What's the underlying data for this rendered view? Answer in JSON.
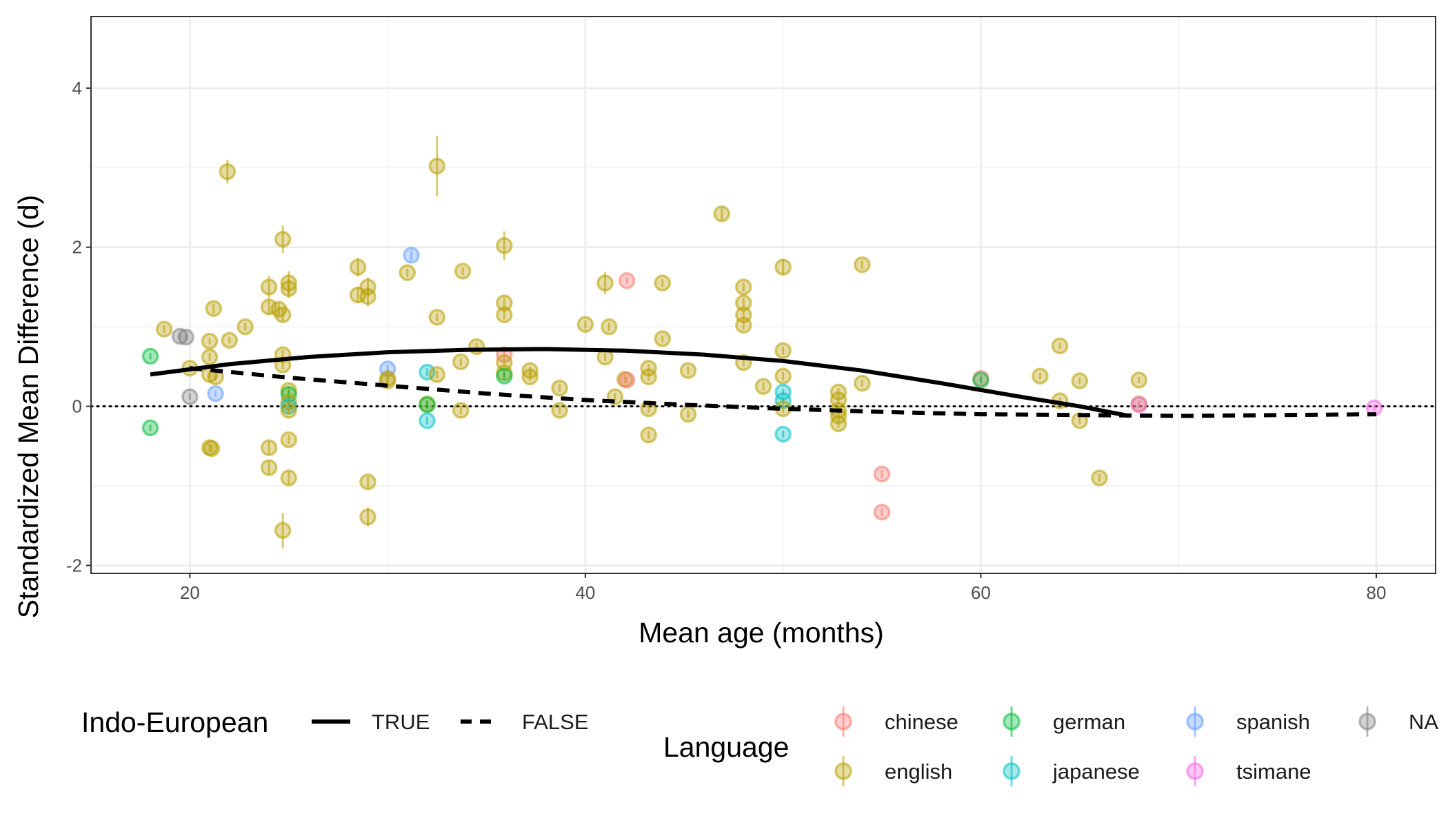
{
  "chart_data": {
    "type": "scatter",
    "xlabel": "Mean age (months)",
    "ylabel": "Standardized Mean Difference (d)",
    "xlim": [
      15,
      83
    ],
    "ylim": [
      -2.1,
      4.9
    ],
    "x_ticks": [
      20,
      40,
      60,
      80
    ],
    "y_ticks": [
      -2,
      0,
      2,
      4
    ],
    "reference_line_y": 0,
    "grid": true,
    "legend_position": "bottom",
    "language_legend": {
      "title": "Language",
      "entries": [
        {
          "name": "chinese",
          "color": "#F8766D"
        },
        {
          "name": "english",
          "color": "#B79F00"
        },
        {
          "name": "german",
          "color": "#00BA38"
        },
        {
          "name": "japanese",
          "color": "#00BFC4"
        },
        {
          "name": "spanish",
          "color": "#619CFF"
        },
        {
          "name": "tsimane",
          "color": "#F564E3"
        },
        {
          "name": "NA",
          "color": "#7F7F7F"
        }
      ]
    },
    "indo_european_legend": {
      "title": "Indo-European",
      "entries": [
        {
          "name": "TRUE",
          "linestyle": "solid"
        },
        {
          "name": "FALSE",
          "linestyle": "dashed"
        }
      ]
    },
    "trend_lines": [
      {
        "name": "TRUE",
        "linestyle": "solid",
        "x": [
          18,
          22,
          26,
          30,
          34,
          38,
          42,
          46,
          50,
          54,
          58,
          62,
          65,
          67.5
        ],
        "y": [
          0.4,
          0.53,
          0.62,
          0.68,
          0.71,
          0.72,
          0.7,
          0.65,
          0.57,
          0.45,
          0.29,
          0.12,
          0.0,
          -0.12
        ]
      },
      {
        "name": "FALSE",
        "linestyle": "dashed",
        "x": [
          20,
          25,
          30,
          35,
          40,
          45,
          50,
          55,
          60,
          65,
          70,
          75,
          80
        ],
        "y": [
          0.48,
          0.36,
          0.26,
          0.16,
          0.08,
          0.02,
          -0.03,
          -0.07,
          -0.1,
          -0.11,
          -0.12,
          -0.11,
          -0.1
        ]
      }
    ],
    "points": [
      {
        "x": 21.9,
        "y": 2.95,
        "err": 0.15,
        "language": "english"
      },
      {
        "x": 32.5,
        "y": 3.02,
        "err": 0.38,
        "language": "english"
      },
      {
        "x": 24.7,
        "y": 2.1,
        "err": 0.17,
        "language": "english"
      },
      {
        "x": 35.9,
        "y": 2.02,
        "err": 0.18,
        "language": "english"
      },
      {
        "x": 46.9,
        "y": 2.42,
        "err": 0.08,
        "language": "english"
      },
      {
        "x": 31.2,
        "y": 1.9,
        "err": 0.06,
        "language": "spanish"
      },
      {
        "x": 28.5,
        "y": 1.75,
        "err": 0.12,
        "language": "english"
      },
      {
        "x": 33.8,
        "y": 1.7,
        "err": 0.05,
        "language": "english"
      },
      {
        "x": 31.0,
        "y": 1.68,
        "err": 0.05,
        "language": "english"
      },
      {
        "x": 24.0,
        "y": 1.5,
        "err": 0.14,
        "language": "english"
      },
      {
        "x": 25.0,
        "y": 1.55,
        "err": 0.15,
        "language": "english"
      },
      {
        "x": 25.0,
        "y": 1.48,
        "err": 0.12,
        "language": "english"
      },
      {
        "x": 29.0,
        "y": 1.5,
        "err": 0.12,
        "language": "english"
      },
      {
        "x": 28.5,
        "y": 1.4,
        "err": 0.1,
        "language": "english"
      },
      {
        "x": 29.0,
        "y": 1.38,
        "err": 0.12,
        "language": "english"
      },
      {
        "x": 24.0,
        "y": 1.25,
        "err": 0.1,
        "language": "english"
      },
      {
        "x": 24.5,
        "y": 1.22,
        "err": 0.08,
        "language": "english"
      },
      {
        "x": 24.7,
        "y": 1.15,
        "err": 0.08,
        "language": "english"
      },
      {
        "x": 21.2,
        "y": 1.23,
        "err": 0.06,
        "language": "english"
      },
      {
        "x": 32.5,
        "y": 1.12,
        "err": 0.05,
        "language": "english"
      },
      {
        "x": 35.9,
        "y": 1.3,
        "err": 0.07,
        "language": "english"
      },
      {
        "x": 35.9,
        "y": 1.15,
        "err": 0.06,
        "language": "english"
      },
      {
        "x": 22.8,
        "y": 1.0,
        "err": 0.05,
        "language": "english"
      },
      {
        "x": 18.7,
        "y": 0.97,
        "err": 0.05,
        "language": "english"
      },
      {
        "x": 41.0,
        "y": 1.55,
        "err": 0.14,
        "language": "english"
      },
      {
        "x": 43.9,
        "y": 1.55,
        "err": 0.05,
        "language": "english"
      },
      {
        "x": 42.1,
        "y": 1.58,
        "err": 0.04,
        "language": "chinese"
      },
      {
        "x": 48.0,
        "y": 1.5,
        "err": 0.06,
        "language": "english"
      },
      {
        "x": 48.0,
        "y": 1.3,
        "err": 0.06,
        "language": "english"
      },
      {
        "x": 48.0,
        "y": 1.15,
        "err": 0.06,
        "language": "english"
      },
      {
        "x": 48.0,
        "y": 1.02,
        "err": 0.06,
        "language": "english"
      },
      {
        "x": 50.0,
        "y": 1.75,
        "err": 0.1,
        "language": "english"
      },
      {
        "x": 54.0,
        "y": 1.78,
        "err": 0.05,
        "language": "english"
      },
      {
        "x": 40.0,
        "y": 1.03,
        "err": 0.05,
        "language": "english"
      },
      {
        "x": 41.2,
        "y": 1.0,
        "err": 0.05,
        "language": "english"
      },
      {
        "x": 19.5,
        "y": 0.88,
        "err": 0.04,
        "language": "NA"
      },
      {
        "x": 19.8,
        "y": 0.87,
        "err": 0.04,
        "language": "NA"
      },
      {
        "x": 22.0,
        "y": 0.83,
        "err": 0.04,
        "language": "english"
      },
      {
        "x": 21.0,
        "y": 0.82,
        "err": 0.04,
        "language": "english"
      },
      {
        "x": 18.0,
        "y": 0.63,
        "err": 0.04,
        "language": "german"
      },
      {
        "x": 21.0,
        "y": 0.62,
        "err": 0.05,
        "language": "english"
      },
      {
        "x": 24.7,
        "y": 0.65,
        "err": 0.06,
        "language": "english"
      },
      {
        "x": 24.7,
        "y": 0.52,
        "err": 0.05,
        "language": "english"
      },
      {
        "x": 34.5,
        "y": 0.75,
        "err": 0.05,
        "language": "english"
      },
      {
        "x": 33.7,
        "y": 0.56,
        "err": 0.05,
        "language": "english"
      },
      {
        "x": 35.9,
        "y": 0.65,
        "err": 0.05,
        "language": "chinese"
      },
      {
        "x": 35.9,
        "y": 0.55,
        "err": 0.05,
        "language": "english"
      },
      {
        "x": 35.9,
        "y": 0.42,
        "err": 0.05,
        "language": "english"
      },
      {
        "x": 35.9,
        "y": 0.38,
        "err": 0.05,
        "language": "german"
      },
      {
        "x": 37.2,
        "y": 0.45,
        "err": 0.05,
        "language": "english"
      },
      {
        "x": 37.2,
        "y": 0.37,
        "err": 0.05,
        "language": "english"
      },
      {
        "x": 41.0,
        "y": 0.62,
        "err": 0.05,
        "language": "english"
      },
      {
        "x": 43.9,
        "y": 0.85,
        "err": 0.04,
        "language": "english"
      },
      {
        "x": 48.0,
        "y": 0.55,
        "err": 0.05,
        "language": "english"
      },
      {
        "x": 50.0,
        "y": 0.7,
        "err": 0.05,
        "language": "english"
      },
      {
        "x": 20.0,
        "y": 0.48,
        "err": 0.04,
        "language": "english"
      },
      {
        "x": 21.0,
        "y": 0.4,
        "err": 0.04,
        "language": "english"
      },
      {
        "x": 21.3,
        "y": 0.37,
        "err": 0.04,
        "language": "english"
      },
      {
        "x": 30.0,
        "y": 0.47,
        "err": 0.05,
        "language": "spanish"
      },
      {
        "x": 30.0,
        "y": 0.35,
        "err": 0.05,
        "language": "english"
      },
      {
        "x": 30.0,
        "y": 0.32,
        "err": 0.05,
        "language": "english"
      },
      {
        "x": 32.0,
        "y": 0.43,
        "err": 0.05,
        "language": "japanese"
      },
      {
        "x": 32.5,
        "y": 0.4,
        "err": 0.05,
        "language": "english"
      },
      {
        "x": 38.7,
        "y": 0.23,
        "err": 0.05,
        "language": "english"
      },
      {
        "x": 41.5,
        "y": 0.12,
        "err": 0.05,
        "language": "english"
      },
      {
        "x": 42.0,
        "y": 0.34,
        "err": 0.05,
        "language": "english"
      },
      {
        "x": 42.1,
        "y": 0.33,
        "err": 0.04,
        "language": "chinese"
      },
      {
        "x": 43.2,
        "y": 0.48,
        "err": 0.05,
        "language": "english"
      },
      {
        "x": 43.2,
        "y": 0.37,
        "err": 0.05,
        "language": "english"
      },
      {
        "x": 45.2,
        "y": 0.45,
        "err": 0.05,
        "language": "english"
      },
      {
        "x": 49.0,
        "y": 0.25,
        "err": 0.05,
        "language": "english"
      },
      {
        "x": 50.0,
        "y": 0.38,
        "err": 0.05,
        "language": "english"
      },
      {
        "x": 54.0,
        "y": 0.29,
        "err": 0.04,
        "language": "english"
      },
      {
        "x": 60.0,
        "y": 0.35,
        "err": 0.04,
        "language": "chinese"
      },
      {
        "x": 60.0,
        "y": 0.33,
        "err": 0.04,
        "language": "german"
      },
      {
        "x": 63.0,
        "y": 0.38,
        "err": 0.04,
        "language": "english"
      },
      {
        "x": 64.0,
        "y": 0.76,
        "err": 0.04,
        "language": "english"
      },
      {
        "x": 64.0,
        "y": 0.07,
        "err": 0.04,
        "language": "english"
      },
      {
        "x": 65.0,
        "y": 0.32,
        "err": 0.04,
        "language": "english"
      },
      {
        "x": 68.0,
        "y": 0.33,
        "err": 0.04,
        "language": "english"
      },
      {
        "x": 21.3,
        "y": 0.16,
        "err": 0.04,
        "language": "spanish"
      },
      {
        "x": 20.0,
        "y": 0.12,
        "err": 0.04,
        "language": "NA"
      },
      {
        "x": 25.0,
        "y": 0.2,
        "err": 0.05,
        "language": "english"
      },
      {
        "x": 25.0,
        "y": 0.15,
        "err": 0.05,
        "language": "german"
      },
      {
        "x": 25.0,
        "y": 0.05,
        "err": 0.05,
        "language": "english"
      },
      {
        "x": 25.0,
        "y": 0.0,
        "err": 0.05,
        "language": "japanese"
      },
      {
        "x": 25.0,
        "y": -0.05,
        "err": 0.05,
        "language": "english"
      },
      {
        "x": 32.0,
        "y": 0.03,
        "err": 0.05,
        "language": "english"
      },
      {
        "x": 32.0,
        "y": 0.02,
        "err": 0.05,
        "language": "german"
      },
      {
        "x": 32.0,
        "y": -0.18,
        "err": 0.05,
        "language": "japanese"
      },
      {
        "x": 33.7,
        "y": -0.05,
        "err": 0.05,
        "language": "english"
      },
      {
        "x": 38.7,
        "y": -0.05,
        "err": 0.05,
        "language": "english"
      },
      {
        "x": 43.2,
        "y": -0.03,
        "err": 0.05,
        "language": "english"
      },
      {
        "x": 43.2,
        "y": -0.36,
        "err": 0.05,
        "language": "english"
      },
      {
        "x": 45.2,
        "y": -0.1,
        "err": 0.05,
        "language": "english"
      },
      {
        "x": 50.0,
        "y": 0.18,
        "err": 0.04,
        "language": "japanese"
      },
      {
        "x": 50.0,
        "y": 0.07,
        "err": 0.04,
        "language": "japanese"
      },
      {
        "x": 50.0,
        "y": -0.03,
        "err": 0.05,
        "language": "english"
      },
      {
        "x": 50.0,
        "y": -0.35,
        "err": 0.04,
        "language": "japanese"
      },
      {
        "x": 52.8,
        "y": 0.18,
        "err": 0.05,
        "language": "english"
      },
      {
        "x": 52.8,
        "y": 0.08,
        "err": 0.05,
        "language": "english"
      },
      {
        "x": 52.8,
        "y": -0.05,
        "err": 0.05,
        "language": "english"
      },
      {
        "x": 52.8,
        "y": -0.12,
        "err": 0.05,
        "language": "english"
      },
      {
        "x": 52.8,
        "y": -0.22,
        "err": 0.05,
        "language": "english"
      },
      {
        "x": 65.0,
        "y": -0.18,
        "err": 0.04,
        "language": "english"
      },
      {
        "x": 68.0,
        "y": 0.03,
        "err": 0.04,
        "language": "english"
      },
      {
        "x": 68.0,
        "y": 0.02,
        "err": 0.04,
        "language": "tsimane"
      },
      {
        "x": 79.9,
        "y": -0.02,
        "err": 0.04,
        "language": "tsimane"
      },
      {
        "x": 18.0,
        "y": -0.27,
        "err": 0.04,
        "language": "german"
      },
      {
        "x": 21.0,
        "y": -0.52,
        "err": 0.05,
        "language": "english"
      },
      {
        "x": 21.1,
        "y": -0.53,
        "err": 0.05,
        "language": "english"
      },
      {
        "x": 24.0,
        "y": -0.52,
        "err": 0.08,
        "language": "english"
      },
      {
        "x": 24.0,
        "y": -0.77,
        "err": 0.08,
        "language": "english"
      },
      {
        "x": 25.0,
        "y": -0.42,
        "err": 0.06,
        "language": "english"
      },
      {
        "x": 25.0,
        "y": -0.9,
        "err": 0.08,
        "language": "english"
      },
      {
        "x": 29.0,
        "y": -0.95,
        "err": 0.08,
        "language": "english"
      },
      {
        "x": 29.0,
        "y": -1.39,
        "err": 0.12,
        "language": "english"
      },
      {
        "x": 24.7,
        "y": -1.56,
        "err": 0.22,
        "language": "english"
      },
      {
        "x": 55.0,
        "y": -0.85,
        "err": 0.05,
        "language": "chinese"
      },
      {
        "x": 55.0,
        "y": -1.33,
        "err": 0.05,
        "language": "chinese"
      },
      {
        "x": 66.0,
        "y": -0.9,
        "err": 0.05,
        "language": "english"
      }
    ]
  }
}
